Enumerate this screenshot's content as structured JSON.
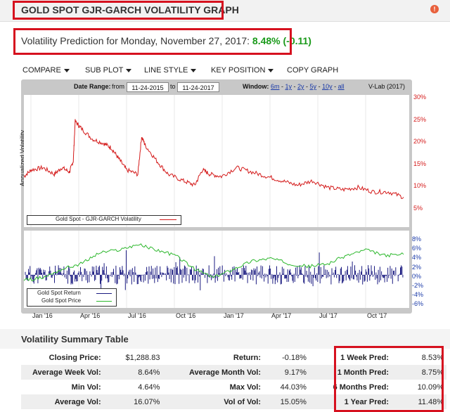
{
  "header": {
    "title": "GOLD SPOT GJR-GARCH VOLATILITY GRAPH"
  },
  "prediction": {
    "text": "Volatility Prediction for Monday, November 27, 2017:",
    "value": "8.48% (-0.11)"
  },
  "menu": {
    "items": [
      "COMPARE",
      "SUB PLOT",
      "LINE STYLE",
      "KEY POSITION",
      "COPY GRAPH"
    ]
  },
  "controls": {
    "date_range_label": "Date Range:",
    "from_label": "from",
    "from_date": "11-24-2015",
    "to_label": "to",
    "to_date": "11-24-2017",
    "window_label": "Window:",
    "windows": [
      "6m",
      "1y",
      "2y",
      "5y",
      "10y",
      "all"
    ],
    "source": "V-Lab (2017)"
  },
  "colors": {
    "highlight": "#d6111f",
    "vol_line": "#d41a1a",
    "price_line": "#2db82d",
    "return_bars": "#1a1a80",
    "positive": "#1a9a1a"
  },
  "chart_data": [
    {
      "type": "line",
      "ylabel": "Annualized Volatility",
      "yticks": [
        "30%",
        "25%",
        "20%",
        "15%",
        "10%",
        "5%"
      ],
      "ylim": [
        2,
        32
      ],
      "xticks": [
        "Jan '16",
        "Apr '16",
        "Jul '16",
        "Oct '16",
        "Jan '17",
        "Apr '17",
        "Jul '17",
        "Oct '17"
      ],
      "series": [
        {
          "name": "Gold Spot - GJR-GARCH Volatility",
          "x": [
            0,
            0.02,
            0.05,
            0.08,
            0.1,
            0.12,
            0.13,
            0.135,
            0.15,
            0.18,
            0.21,
            0.23,
            0.25,
            0.27,
            0.3,
            0.31,
            0.32,
            0.35,
            0.38,
            0.42,
            0.45,
            0.47,
            0.49,
            0.52,
            0.56,
            0.6,
            0.64,
            0.68,
            0.72,
            0.76,
            0.8,
            0.84,
            0.88,
            0.92,
            0.96,
            1.0
          ],
          "values": [
            13.5,
            15.0,
            15.5,
            14.0,
            15.5,
            14.5,
            17.0,
            26.0,
            24.5,
            22.0,
            21.0,
            20.0,
            17.5,
            15.0,
            14.0,
            22.5,
            20.5,
            17.0,
            14.0,
            12.5,
            11.5,
            15.0,
            14.0,
            13.5,
            15.5,
            14.5,
            13.5,
            12.5,
            11.5,
            12.5,
            11.0,
            10.5,
            11.0,
            10.0,
            10.0,
            8.8
          ]
        }
      ]
    },
    {
      "type": "line",
      "yticks": [
        "8%",
        "6%",
        "4%",
        "2%",
        "0%",
        "-2%",
        "-4%",
        "-6%"
      ],
      "ylim": [
        -6,
        8
      ],
      "series": [
        {
          "name": "Gold Spot Price",
          "x": [
            0,
            0.05,
            0.1,
            0.15,
            0.2,
            0.25,
            0.3,
            0.35,
            0.4,
            0.45,
            0.5,
            0.55,
            0.6,
            0.65,
            0.7,
            0.75,
            0.8,
            0.85,
            0.9,
            0.95,
            1.0
          ],
          "values": [
            -1.0,
            -0.5,
            1.0,
            2.0,
            4.0,
            4.5,
            5.5,
            4.5,
            3.5,
            1.0,
            -0.5,
            1.0,
            2.5,
            3.0,
            2.0,
            1.5,
            2.0,
            3.5,
            4.5,
            3.5,
            3.7
          ]
        },
        {
          "name": "Gold Spot Return",
          "type": "bar",
          "count": 480,
          "amplitude": 2.5
        }
      ]
    }
  ],
  "summary": {
    "title": "Volatility Summary Table",
    "rows": [
      [
        "Closing Price:",
        "$1,288.83",
        "Return:",
        "-0.18%",
        "1 Week Pred:",
        "8.53%"
      ],
      [
        "Average Week Vol:",
        "8.64%",
        "Average Month Vol:",
        "9.17%",
        "1 Month Pred:",
        "8.75%"
      ],
      [
        "Min Vol:",
        "4.64%",
        "Max Vol:",
        "44.03%",
        "6 Months Pred:",
        "10.09%"
      ],
      [
        "Average Vol:",
        "16.07%",
        "Vol of Vol:",
        "15.05%",
        "1 Year Pred:",
        "11.48%"
      ]
    ]
  }
}
